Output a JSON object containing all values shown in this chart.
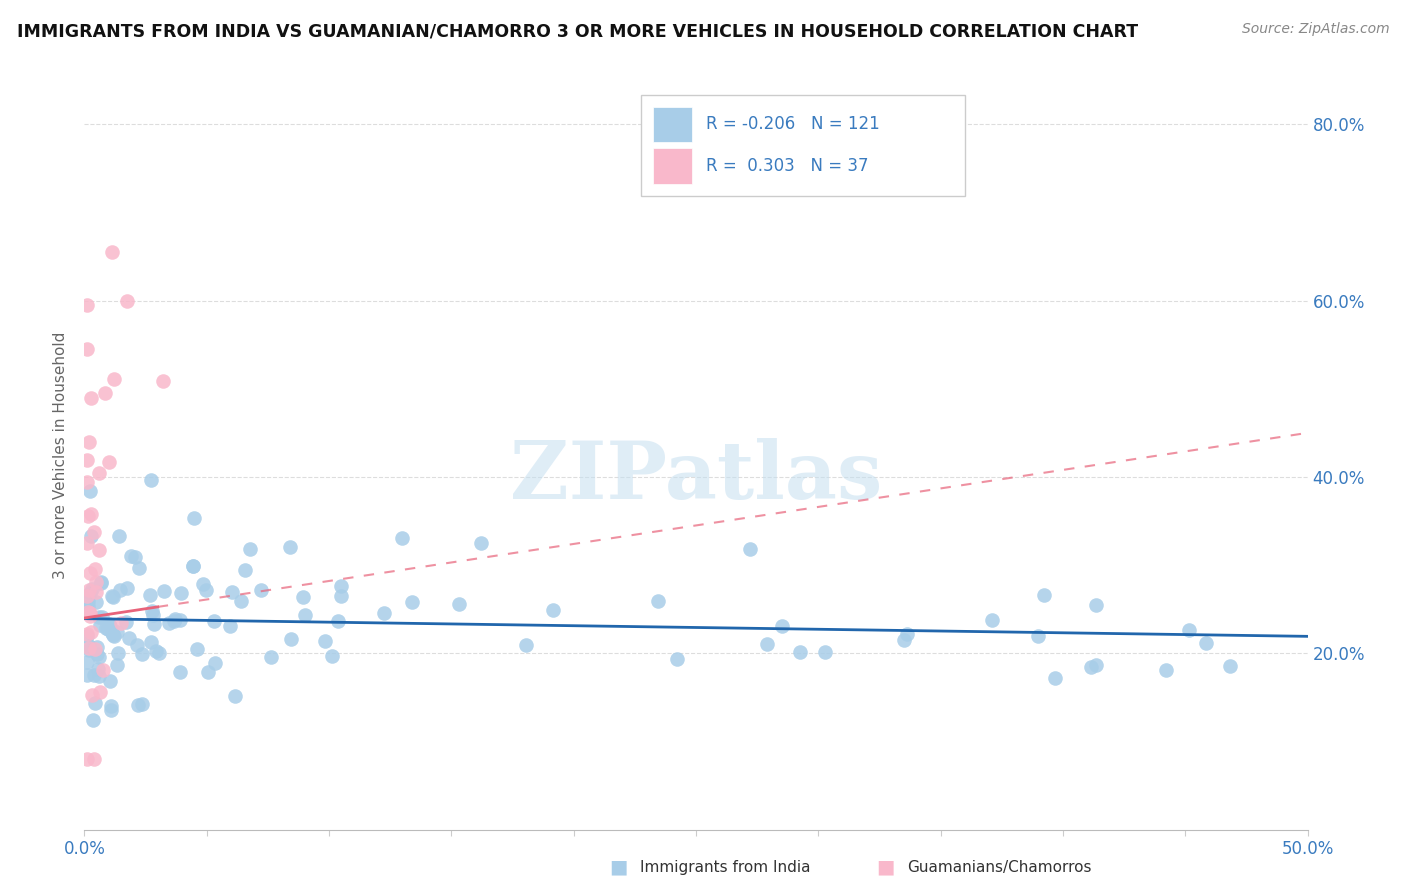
{
  "title": "IMMIGRANTS FROM INDIA VS GUAMANIAN/CHAMORRO 3 OR MORE VEHICLES IN HOUSEHOLD CORRELATION CHART",
  "source": "Source: ZipAtlas.com",
  "ylabel": "3 or more Vehicles in Household",
  "xlim": [
    0.0,
    0.5
  ],
  "ylim": [
    0.0,
    0.85
  ],
  "ytick_right_labels": [
    "20.0%",
    "40.0%",
    "60.0%",
    "80.0%"
  ],
  "ytick_right_vals": [
    0.2,
    0.4,
    0.6,
    0.8
  ],
  "R_blue": -0.206,
  "N_blue": 121,
  "R_pink": 0.303,
  "N_pink": 37,
  "blue_color": "#a8cde8",
  "pink_color": "#f9b8cb",
  "blue_line_color": "#2166ac",
  "pink_line_color": "#e8637a",
  "watermark": "ZIPatlas",
  "legend_label_blue": "Immigrants from India",
  "legend_label_pink": "Guamanians/Chamorros",
  "blue_seed": 42,
  "pink_seed": 15
}
